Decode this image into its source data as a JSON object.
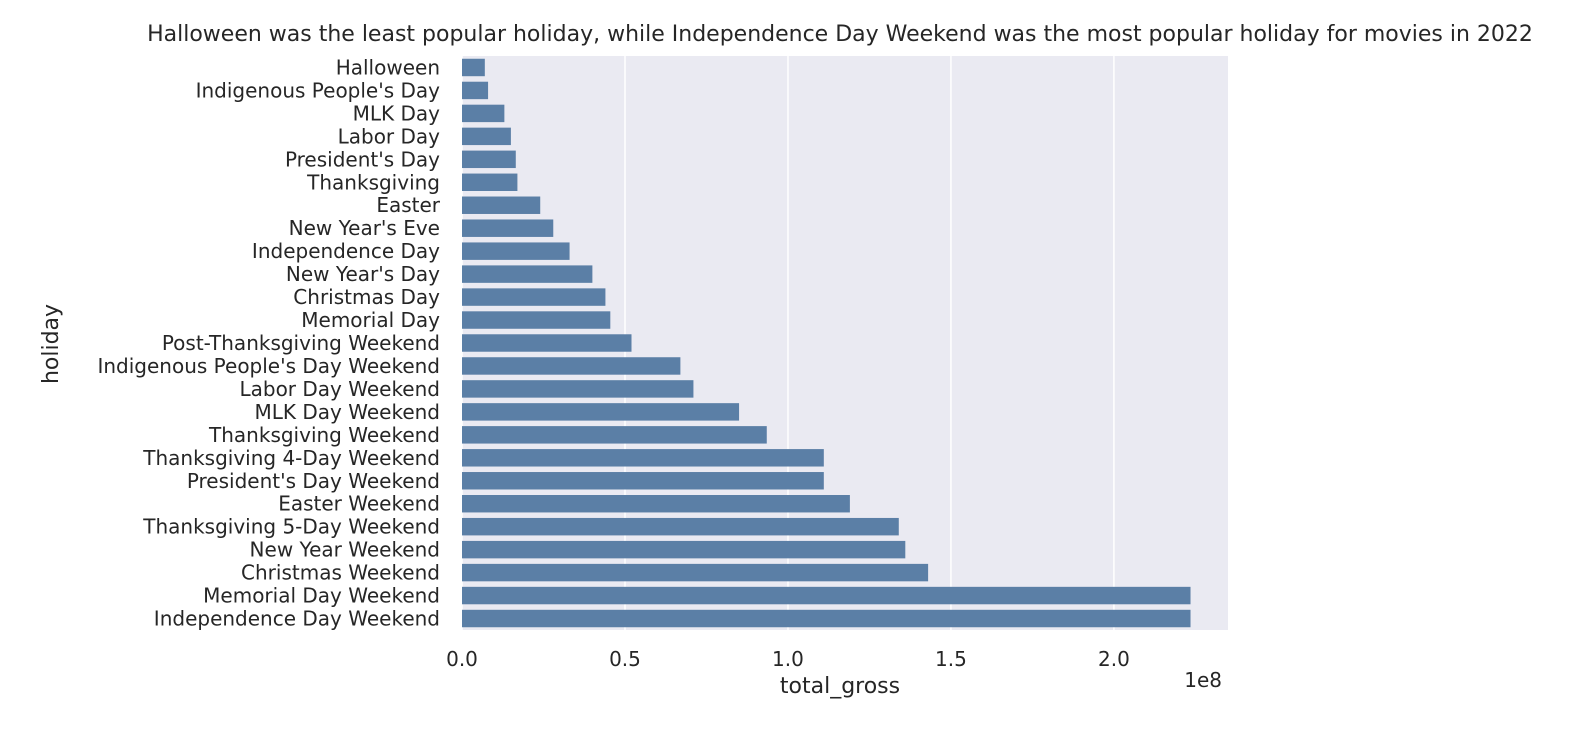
{
  "chart_data": {
    "type": "bar",
    "orientation": "horizontal",
    "title": "Halloween was the least popular holiday, while Independence Day Weekend was the most popular holiday for movies in 2022",
    "xlabel": "total_gross",
    "ylabel": "holiday",
    "x_offset_label": "1e8",
    "xlim": [
      0,
      2.35
    ],
    "xticks": [
      0.0,
      0.5,
      1.0,
      1.5,
      2.0
    ],
    "xtick_labels": [
      "0.0",
      "0.5",
      "1.0",
      "1.5",
      "2.0"
    ],
    "grid": true,
    "bar_color": "#5b7fa6",
    "background_color": "#eaeaf2",
    "categories": [
      "Halloween",
      "Indigenous People's Day",
      "MLK Day",
      "Labor Day",
      "President's Day",
      "Thanksgiving",
      "Easter",
      "New Year's Eve",
      "Independence Day",
      "New Year's Day",
      "Christmas Day",
      "Memorial Day",
      "Post-Thanksgiving Weekend",
      "Indigenous People's Day Weekend",
      "Labor Day Weekend",
      "MLK Day Weekend",
      "Thanksgiving Weekend",
      "Thanksgiving 4-Day Weekend",
      "President's Day Weekend",
      "Easter Weekend",
      "Thanksgiving 5-Day Weekend",
      "New Year Weekend",
      "Christmas Weekend",
      "Memorial Day Weekend",
      "Independence Day Weekend"
    ],
    "values": [
      0.07,
      0.08,
      0.13,
      0.15,
      0.165,
      0.17,
      0.24,
      0.28,
      0.33,
      0.4,
      0.44,
      0.455,
      0.52,
      0.67,
      0.71,
      0.85,
      0.935,
      1.11,
      1.11,
      1.19,
      1.34,
      1.36,
      1.43,
      2.235,
      2.235
    ]
  }
}
